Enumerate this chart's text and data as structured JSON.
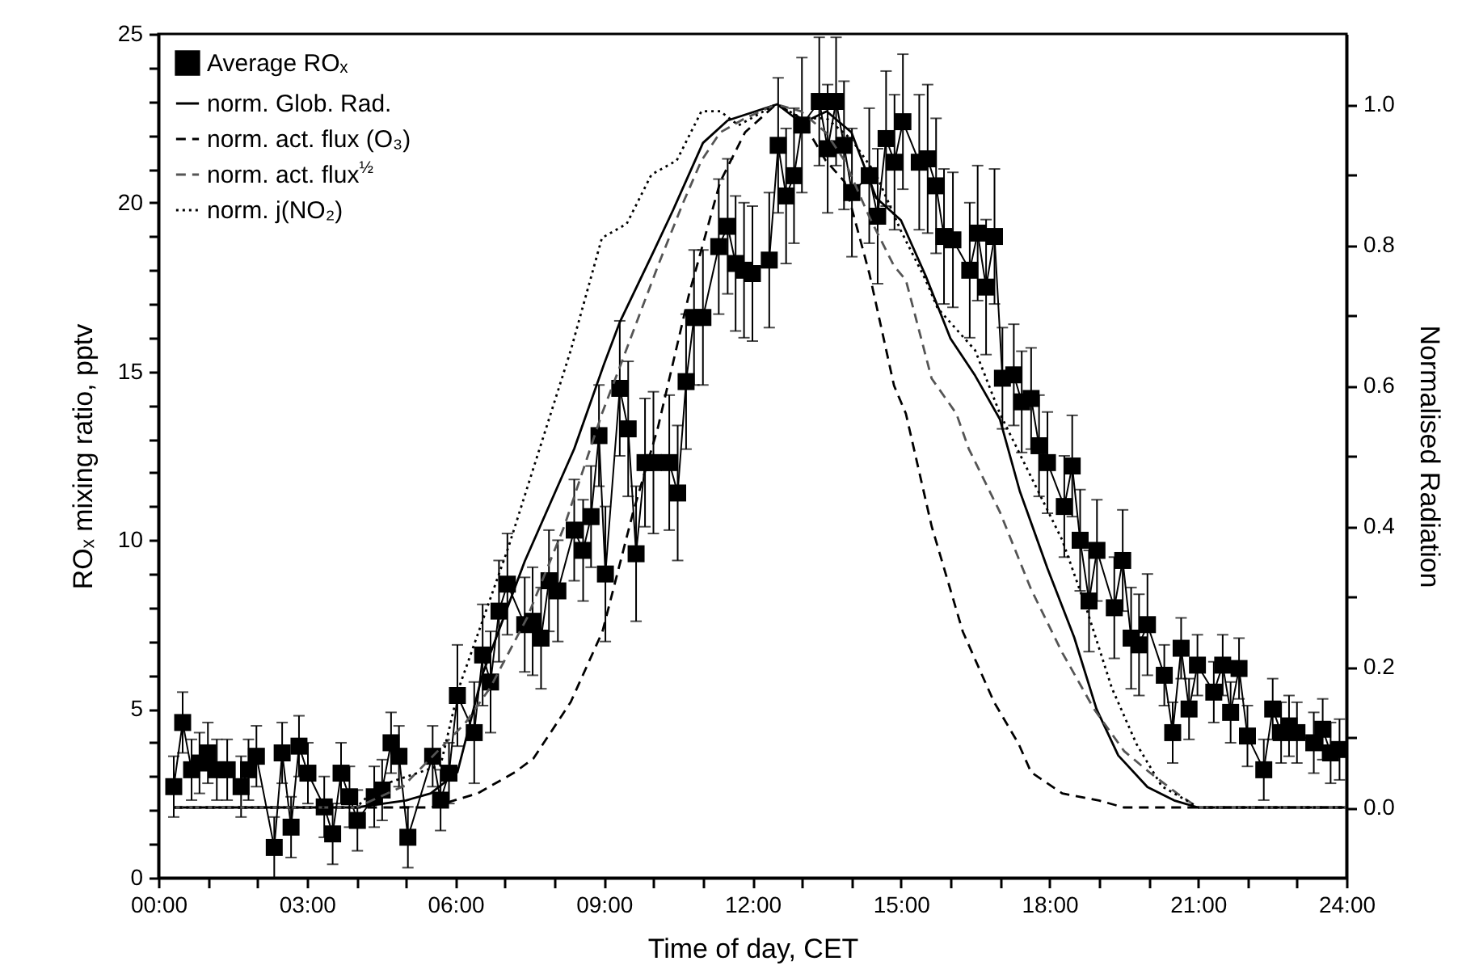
{
  "chart_data": {
    "type": "line",
    "xlabel": "Time of day, CET",
    "ylabel": "ROₓ mixing ratio, pptv",
    "y2label": "Normalised Radiation",
    "legend": "top left",
    "xlim": [
      0,
      24
    ],
    "xticks": [
      {
        "value": 0,
        "label": "00:00"
      },
      {
        "value": 1,
        "label": null
      },
      {
        "value": 2,
        "label": null
      },
      {
        "value": 3,
        "label": "03:00"
      },
      {
        "value": 4,
        "label": null
      },
      {
        "value": 5,
        "label": null
      },
      {
        "value": 6,
        "label": "06:00"
      },
      {
        "value": 7,
        "label": null
      },
      {
        "value": 8,
        "label": null
      },
      {
        "value": 9,
        "label": "09:00"
      },
      {
        "value": 10,
        "label": null
      },
      {
        "value": 11,
        "label": null
      },
      {
        "value": 12,
        "label": "12:00"
      },
      {
        "value": 13,
        "label": null
      },
      {
        "value": 14,
        "label": null
      },
      {
        "value": 15,
        "label": "15:00"
      },
      {
        "value": 16,
        "label": null
      },
      {
        "value": 17,
        "label": null
      },
      {
        "value": 18,
        "label": "18:00"
      },
      {
        "value": 19,
        "label": null
      },
      {
        "value": 20,
        "label": null
      },
      {
        "value": 21,
        "label": "21:00"
      },
      {
        "value": 22,
        "label": null
      },
      {
        "value": 23,
        "label": null
      },
      {
        "value": 24,
        "label": "24:00"
      }
    ],
    "ylim": [
      0,
      25
    ],
    "yticks": [
      0,
      {
        "value": 1,
        "label": null
      },
      {
        "value": 2,
        "label": null
      },
      {
        "value": 3,
        "label": null
      },
      {
        "value": 4,
        "label": null
      },
      5,
      {
        "value": 6,
        "label": null
      },
      {
        "value": 7,
        "label": null
      },
      {
        "value": 8,
        "label": null
      },
      {
        "value": 9,
        "label": null
      },
      10,
      {
        "value": 11,
        "label": null
      },
      {
        "value": 12,
        "label": null
      },
      {
        "value": 13,
        "label": null
      },
      {
        "value": 14,
        "label": null
      },
      15,
      {
        "value": 16,
        "label": null
      },
      {
        "value": 17,
        "label": null
      },
      {
        "value": 18,
        "label": null
      },
      {
        "value": 19,
        "label": null
      },
      20,
      {
        "value": 21,
        "label": null
      },
      {
        "value": 22,
        "label": null
      },
      {
        "value": 23,
        "label": null
      },
      {
        "value": 24,
        "label": null
      },
      25
    ],
    "y2lim": [
      -0.1,
      1.1
    ],
    "y2ticks": [
      {
        "value": 0,
        "label": "0.0"
      },
      {
        "value": 0.1,
        "label": null
      },
      {
        "value": 0.2,
        "label": "0.2"
      },
      {
        "value": 0.3,
        "label": null
      },
      {
        "value": 0.4,
        "label": "0.4"
      },
      {
        "value": 0.5,
        "label": null
      },
      {
        "value": 0.6,
        "label": "0.6"
      },
      {
        "value": 0.7,
        "label": null
      },
      {
        "value": 0.8,
        "label": "0.8"
      },
      {
        "value": 0.9,
        "label": null
      },
      {
        "value": 1,
        "label": "1.0"
      }
    ],
    "series": [
      {
        "name": "Average ROₓ",
        "color": "#000000",
        "marker": "square",
        "line_style": "solid",
        "x": [
          0.31,
          0.49,
          0.67,
          0.83,
          1.0,
          1.18,
          1.39,
          1.67,
          1.82,
          1.98,
          2.34,
          2.5,
          2.68,
          2.84,
          3.02,
          3.35,
          3.52,
          3.69,
          3.86,
          4.02,
          4.36,
          4.52,
          4.7,
          4.86,
          5.04,
          5.54,
          5.7,
          5.87,
          6.04,
          6.38,
          6.55,
          6.71,
          6.88,
          7.05,
          7.4,
          7.56,
          7.73,
          7.89,
          8.07,
          8.4,
          8.58,
          8.74,
          8.9,
          9.03,
          9.32,
          9.49,
          9.65,
          9.83,
          10.0,
          10.32,
          10.49,
          10.66,
          10.82,
          11.0,
          11.32,
          11.5,
          11.66,
          11.83,
          12.0,
          12.34,
          12.52,
          12.68,
          12.84,
          13.0,
          13.35,
          13.52,
          13.69,
          13.85,
          14.01,
          14.36,
          14.53,
          14.7,
          14.87,
          15.04,
          15.37,
          15.54,
          15.71,
          15.87,
          16.05,
          16.39,
          16.55,
          16.72,
          16.89,
          17.05,
          17.28,
          17.44,
          17.63,
          17.79,
          17.96,
          18.3,
          18.46,
          18.62,
          18.8,
          18.96,
          19.31,
          19.48,
          19.65,
          19.81,
          19.98,
          20.32,
          20.49,
          20.66,
          20.82,
          20.99,
          21.32,
          21.5,
          21.66,
          21.83,
          22.0,
          22.33,
          22.51,
          22.68,
          22.84,
          23.0,
          23.34,
          23.52,
          23.68,
          23.86
        ],
        "values": [
          2.7,
          4.6,
          3.2,
          3.4,
          3.7,
          3.2,
          3.2,
          2.7,
          3.2,
          3.6,
          0.9,
          3.7,
          1.5,
          3.9,
          3.1,
          2.1,
          1.3,
          3.1,
          2.4,
          1.7,
          2.4,
          2.6,
          4.0,
          3.6,
          1.2,
          3.6,
          2.3,
          3.1,
          5.4,
          4.3,
          6.6,
          5.8,
          7.9,
          8.7,
          7.5,
          7.6,
          7.1,
          8.8,
          8.5,
          10.3,
          9.7,
          10.7,
          13.1,
          9.0,
          14.5,
          13.3,
          9.6,
          12.3,
          12.3,
          12.3,
          11.4,
          14.7,
          16.6,
          16.6,
          18.7,
          19.3,
          18.2,
          18.0,
          17.9,
          18.3,
          21.7,
          20.2,
          20.8,
          22.3,
          23.0,
          21.6,
          23.0,
          21.7,
          20.3,
          20.8,
          19.6,
          21.9,
          21.2,
          22.4,
          21.2,
          21.3,
          20.5,
          19.0,
          18.9,
          18.0,
          19.1,
          17.5,
          19.0,
          14.8,
          14.9,
          14.1,
          14.2,
          12.8,
          12.3,
          11.0,
          12.2,
          10.0,
          8.2,
          9.7,
          8.0,
          9.4,
          7.1,
          6.9,
          7.5,
          6.0,
          4.3,
          6.8,
          5.0,
          6.3,
          5.5,
          6.3,
          4.9,
          6.2,
          4.2,
          3.2,
          5.0,
          4.3,
          4.5,
          4.3,
          4.0,
          4.4,
          3.7,
          3.8
        ],
        "errors": [
          0.9,
          0.9,
          0.9,
          0.9,
          0.9,
          0.9,
          0.9,
          0.9,
          0.9,
          0.9,
          0.9,
          0.9,
          0.9,
          0.9,
          0.9,
          0.9,
          0.9,
          0.9,
          0.9,
          0.9,
          0.9,
          0.9,
          0.9,
          0.9,
          0.9,
          0.9,
          0.9,
          0.9,
          1.5,
          1.5,
          1.5,
          1.5,
          1.5,
          1.5,
          1.4,
          1.6,
          1.5,
          1.5,
          1.5,
          1.5,
          1.5,
          1.5,
          1.5,
          2.0,
          2.0,
          2.0,
          2.0,
          1.9,
          2.1,
          2.0,
          2.0,
          2.0,
          2.0,
          2.0,
          2.0,
          2.0,
          2.0,
          2.0,
          2.0,
          2.0,
          2.0,
          2.0,
          2.0,
          2.0,
          1.9,
          1.9,
          1.9,
          1.9,
          1.9,
          2.0,
          2.0,
          2.0,
          2.0,
          2.0,
          2.0,
          2.2,
          2.0,
          2.0,
          2.0,
          2.0,
          2.0,
          2.0,
          2.0,
          1.5,
          1.5,
          1.5,
          1.5,
          1.5,
          1.5,
          1.5,
          1.5,
          1.5,
          1.5,
          1.5,
          1.5,
          1.5,
          1.5,
          1.5,
          1.5,
          0.9,
          0.9,
          0.9,
          0.9,
          0.9,
          0.9,
          0.9,
          0.9,
          0.9,
          0.9,
          0.9,
          0.9,
          0.9,
          0.9,
          0.9,
          0.9,
          0.9,
          0.9,
          0.9
        ]
      },
      {
        "name": "norm. Glob. Rad.",
        "axis": "y2",
        "color": "#000000",
        "line_style": "solid",
        "x": [
          0.3,
          2,
          4,
          4.5,
          5,
          5.5,
          6.04,
          6.55,
          7.4,
          8.4,
          9.0,
          9.32,
          10,
          10.4,
          11,
          11.5,
          12.5,
          13,
          13.5,
          14,
          14.5,
          15,
          15.5,
          16,
          16.5,
          17,
          17.4,
          17.96,
          18.5,
          18.95,
          19.39,
          19.98,
          20.52,
          21,
          24
        ],
        "values": [
          0,
          0,
          0,
          0.005,
          0.01,
          0.02,
          0.05,
          0.19,
          0.35,
          0.51,
          0.63,
          0.69,
          0.79,
          0.85,
          0.945,
          0.977,
          1.0,
          0.973,
          0.99,
          0.96,
          0.867,
          0.835,
          0.756,
          0.667,
          0.614,
          0.552,
          0.45,
          0.34,
          0.242,
          0.14,
          0.074,
          0.029,
          0.01,
          0,
          0
        ]
      },
      {
        "name": "norm. act. flux (O₃)",
        "axis": "y2",
        "color": "#000000",
        "line_style": "dashed",
        "x": [
          0.3,
          4,
          5.5,
          6.45,
          7.2,
          7.58,
          8.33,
          8.97,
          9.59,
          10.09,
          10.72,
          11.35,
          11.85,
          12.48,
          12.98,
          13.48,
          13.86,
          14.36,
          14.86,
          15.1,
          15.62,
          16.25,
          16.88,
          17.38,
          17.63,
          18.26,
          19,
          19.5,
          24
        ],
        "values": [
          0,
          0,
          0,
          0.02,
          0.05,
          0.07,
          0.15,
          0.25,
          0.42,
          0.54,
          0.73,
          0.89,
          0.96,
          1.0,
          0.98,
          0.92,
          0.89,
          0.76,
          0.6,
          0.56,
          0.4,
          0.25,
          0.15,
          0.09,
          0.05,
          0.02,
          0.01,
          0,
          0
        ]
      },
      {
        "name": "norm. act. flux$^{½}$",
        "axis": "y2",
        "color": "#555555",
        "line_style": "dashed",
        "x": [
          0.3,
          4,
          4.94,
          6.2,
          6.7,
          7.45,
          8.2,
          8.96,
          9.34,
          10.09,
          10.6,
          10.97,
          11.35,
          11.85,
          12.48,
          12.98,
          13.48,
          13.86,
          14.36,
          14.86,
          15.1,
          15.62,
          16.12,
          16.37,
          17.0,
          17.63,
          18.26,
          18.9,
          19.51,
          20.02,
          20.58,
          21,
          24
        ],
        "values": [
          0,
          0,
          0.03,
          0.12,
          0.17,
          0.27,
          0.4,
          0.56,
          0.63,
          0.77,
          0.86,
          0.92,
          0.96,
          0.98,
          1.0,
          0.99,
          0.96,
          0.92,
          0.84,
          0.77,
          0.75,
          0.61,
          0.56,
          0.51,
          0.42,
          0.31,
          0.22,
          0.14,
          0.08,
          0.05,
          0.02,
          0,
          0
        ]
      },
      {
        "name": "norm. j(NO₂)",
        "axis": "y2",
        "color": "#000000",
        "line_style": "dotted",
        "x": [
          0.3,
          4,
          4.43,
          5.7,
          6.07,
          7.07,
          7.7,
          8.33,
          8.96,
          9.46,
          9.96,
          10.47,
          10.97,
          11.35,
          11.72,
          12.48,
          13,
          13.5,
          14,
          14.5,
          15,
          15.5,
          15.74,
          16.5,
          17,
          17.63,
          18.26,
          18.76,
          19.26,
          19.76,
          20.27,
          20.77,
          21,
          24
        ],
        "values": [
          0,
          0,
          0.03,
          0.06,
          0.17,
          0.37,
          0.51,
          0.65,
          0.81,
          0.83,
          0.9,
          0.92,
          0.99,
          0.99,
          0.97,
          1.0,
          0.98,
          0.98,
          0.95,
          0.9,
          0.82,
          0.75,
          0.71,
          0.65,
          0.56,
          0.47,
          0.38,
          0.28,
          0.17,
          0.09,
          0.03,
          0.01,
          0,
          0
        ]
      }
    ]
  }
}
